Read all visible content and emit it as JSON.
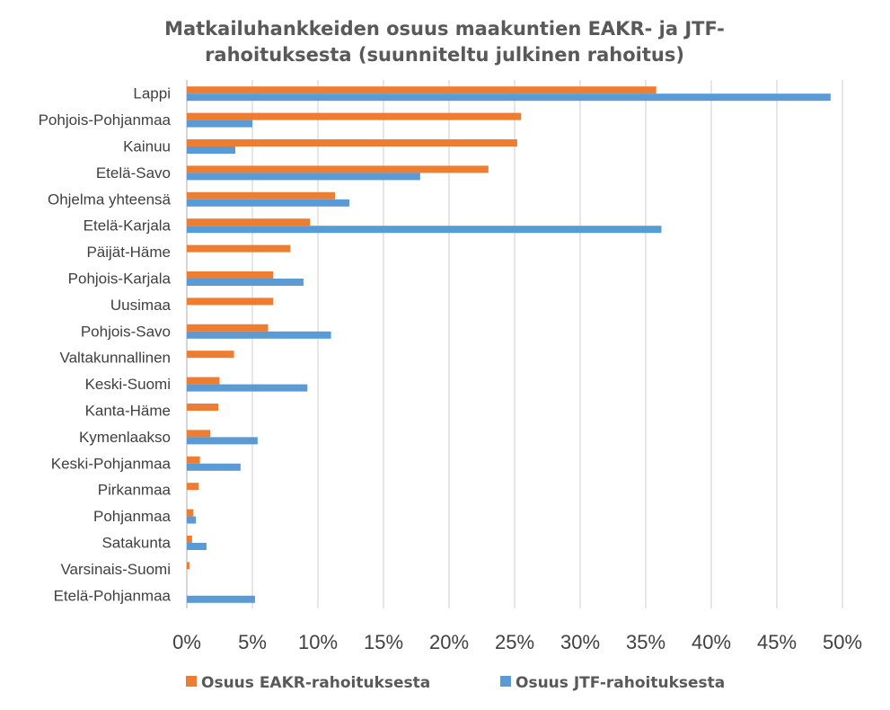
{
  "chart_data": {
    "type": "bar",
    "orientation": "horizontal",
    "title_lines": [
      "Matkailuhankkeiden osuus maakuntien EAKR- ja JTF-",
      "rahoituksesta (suunniteltu julkinen rahoitus)"
    ],
    "categories": [
      "Lappi",
      "Pohjois-Pohjanmaa",
      "Kainuu",
      "Etelä-Savo",
      "Ohjelma yhteensä",
      "Etelä-Karjala",
      "Päijät-Häme",
      "Pohjois-Karjala",
      "Uusimaa",
      "Pohjois-Savo",
      "Valtakunnallinen",
      "Keski-Suomi",
      "Kanta-Häme",
      "Kymenlaakso",
      "Keski-Pohjanmaa",
      "Pirkanmaa",
      "Pohjanmaa",
      "Satakunta",
      "Varsinais-Suomi",
      "Etelä-Pohjanmaa"
    ],
    "series": [
      {
        "name": "Osuus EAKR-rahoituksesta",
        "color": "#ed7d31",
        "values": [
          0.358,
          0.255,
          0.252,
          0.23,
          0.113,
          0.094,
          0.079,
          0.066,
          0.066,
          0.062,
          0.036,
          0.025,
          0.024,
          0.018,
          0.01,
          0.009,
          0.005,
          0.004,
          0.002,
          0.0
        ]
      },
      {
        "name": "Osuus JTF-rahoituksesta",
        "color": "#5b9bd5",
        "values": [
          0.491,
          0.05,
          0.037,
          0.178,
          0.124,
          0.362,
          0.0,
          0.089,
          0.0,
          0.11,
          0.0,
          0.092,
          0.0,
          0.054,
          0.041,
          0.0,
          0.007,
          0.015,
          0.0,
          0.052
        ]
      }
    ],
    "x_ticks": [
      "0%",
      "5%",
      "10%",
      "15%",
      "20%",
      "25%",
      "30%",
      "35%",
      "40%",
      "45%",
      "50%"
    ],
    "xlim": [
      0,
      0.5
    ],
    "grid": true,
    "legend_position": "bottom"
  }
}
